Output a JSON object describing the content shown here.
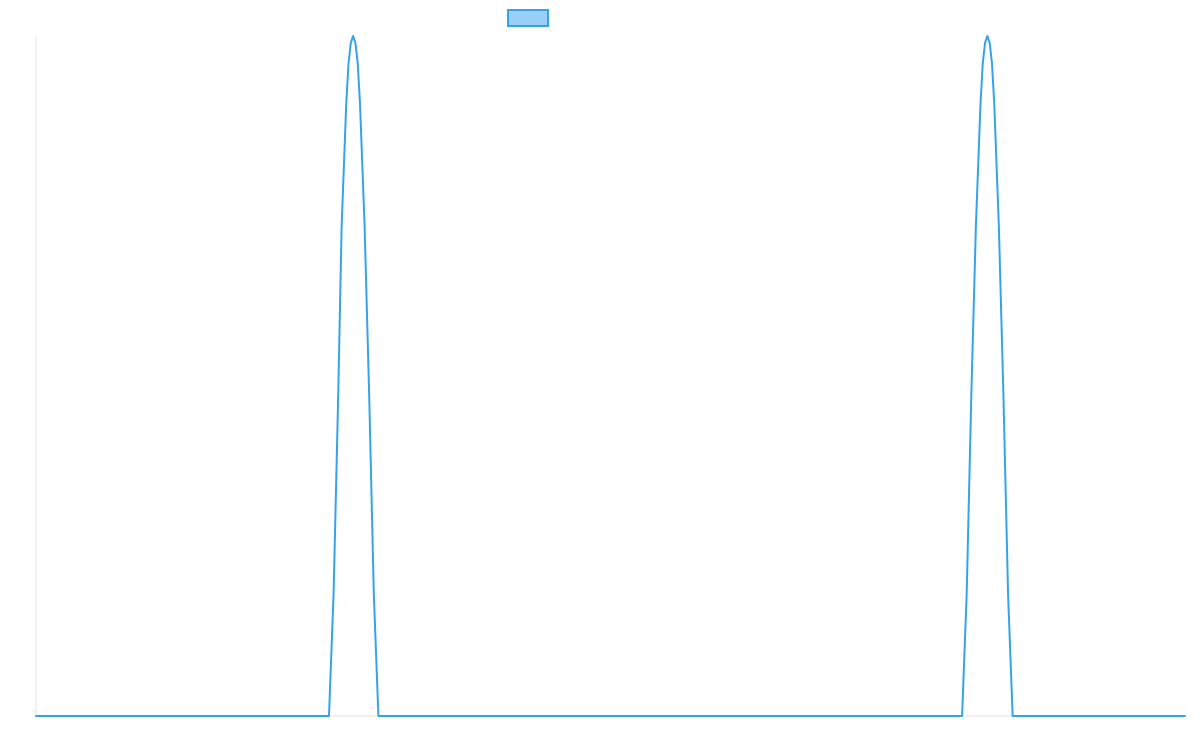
{
  "chart_data": {
    "type": "line",
    "title": "",
    "xlabel": "",
    "ylabel": "",
    "grid": false,
    "legend": {
      "position": "top-center",
      "show_text": false
    },
    "xlim": [
      0,
      1
    ],
    "ylim": [
      0,
      1
    ],
    "series": [
      {
        "name": "",
        "color": "#36a2eb",
        "fill": "#9ad0f5",
        "x": [
          0,
          0.255,
          0.259,
          0.263,
          0.266,
          0.27,
          0.272,
          0.274,
          0.276,
          0.278,
          0.28,
          0.282,
          0.286,
          0.29,
          0.294,
          0.298,
          0.302,
          0.306,
          0.31,
          0.314,
          0.318,
          0.322,
          0.326,
          0.806,
          0.81,
          0.814,
          0.818,
          0.822,
          0.824,
          0.826,
          0.828,
          0.83,
          0.832,
          0.834,
          0.838,
          0.842,
          0.846,
          0.85,
          0.854,
          0.858,
          0.862,
          0.866,
          0.87,
          0.874,
          0.878,
          1
        ],
        "y": [
          0,
          0,
          0.18,
          0.47,
          0.72,
          0.9,
          0.96,
          0.99,
          1.0,
          0.99,
          0.96,
          0.9,
          0.72,
          0.47,
          0.18,
          0,
          0,
          0,
          0,
          0,
          0,
          0,
          0,
          0,
          0.18,
          0.47,
          0.72,
          0.9,
          0.96,
          0.99,
          1.0,
          0.99,
          0.96,
          0.9,
          0.72,
          0.47,
          0.18,
          0,
          0,
          0,
          0,
          0,
          0,
          0,
          0,
          0
        ]
      }
    ]
  }
}
